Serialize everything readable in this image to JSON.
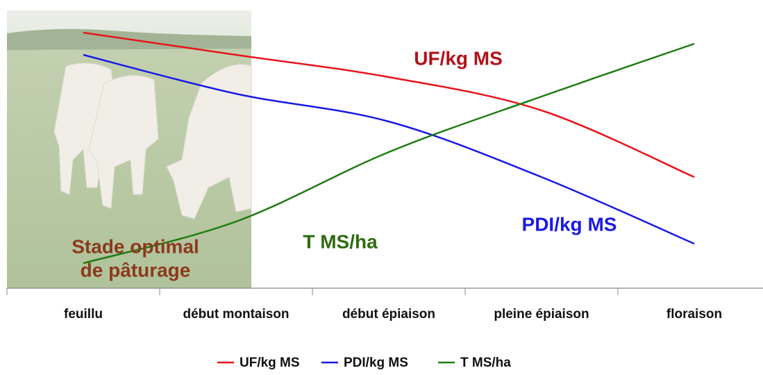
{
  "chart_data": {
    "type": "line",
    "categories": [
      "feuillu",
      "début montaison",
      "début épiaison",
      "pleine épiaison",
      "floraison"
    ],
    "series": [
      {
        "name": "UF/kg MS",
        "color": "#e8141b",
        "values": [
          92,
          84,
          76,
          64,
          40
        ]
      },
      {
        "name": "PDI/kg MS",
        "color": "#1a1ae6",
        "values": [
          84,
          70,
          60,
          40,
          16
        ]
      },
      {
        "name": "T MS/ha",
        "color": "#1f7a12",
        "values": [
          9,
          24,
          49,
          69,
          88
        ]
      }
    ],
    "ylim": [
      0,
      100
    ],
    "annotations": [
      {
        "text": "UF/kg MS",
        "color": "#b3121a"
      },
      {
        "text": "PDI/kg MS",
        "color": "#1a1ae6"
      },
      {
        "text": "T MS/ha",
        "color": "#2e6b12"
      },
      {
        "text": "Stade optimal",
        "color": "#8b3a1e"
      },
      {
        "text": "de pâturage",
        "color": "#8b3a1e"
      }
    ],
    "legend": "bottom"
  }
}
